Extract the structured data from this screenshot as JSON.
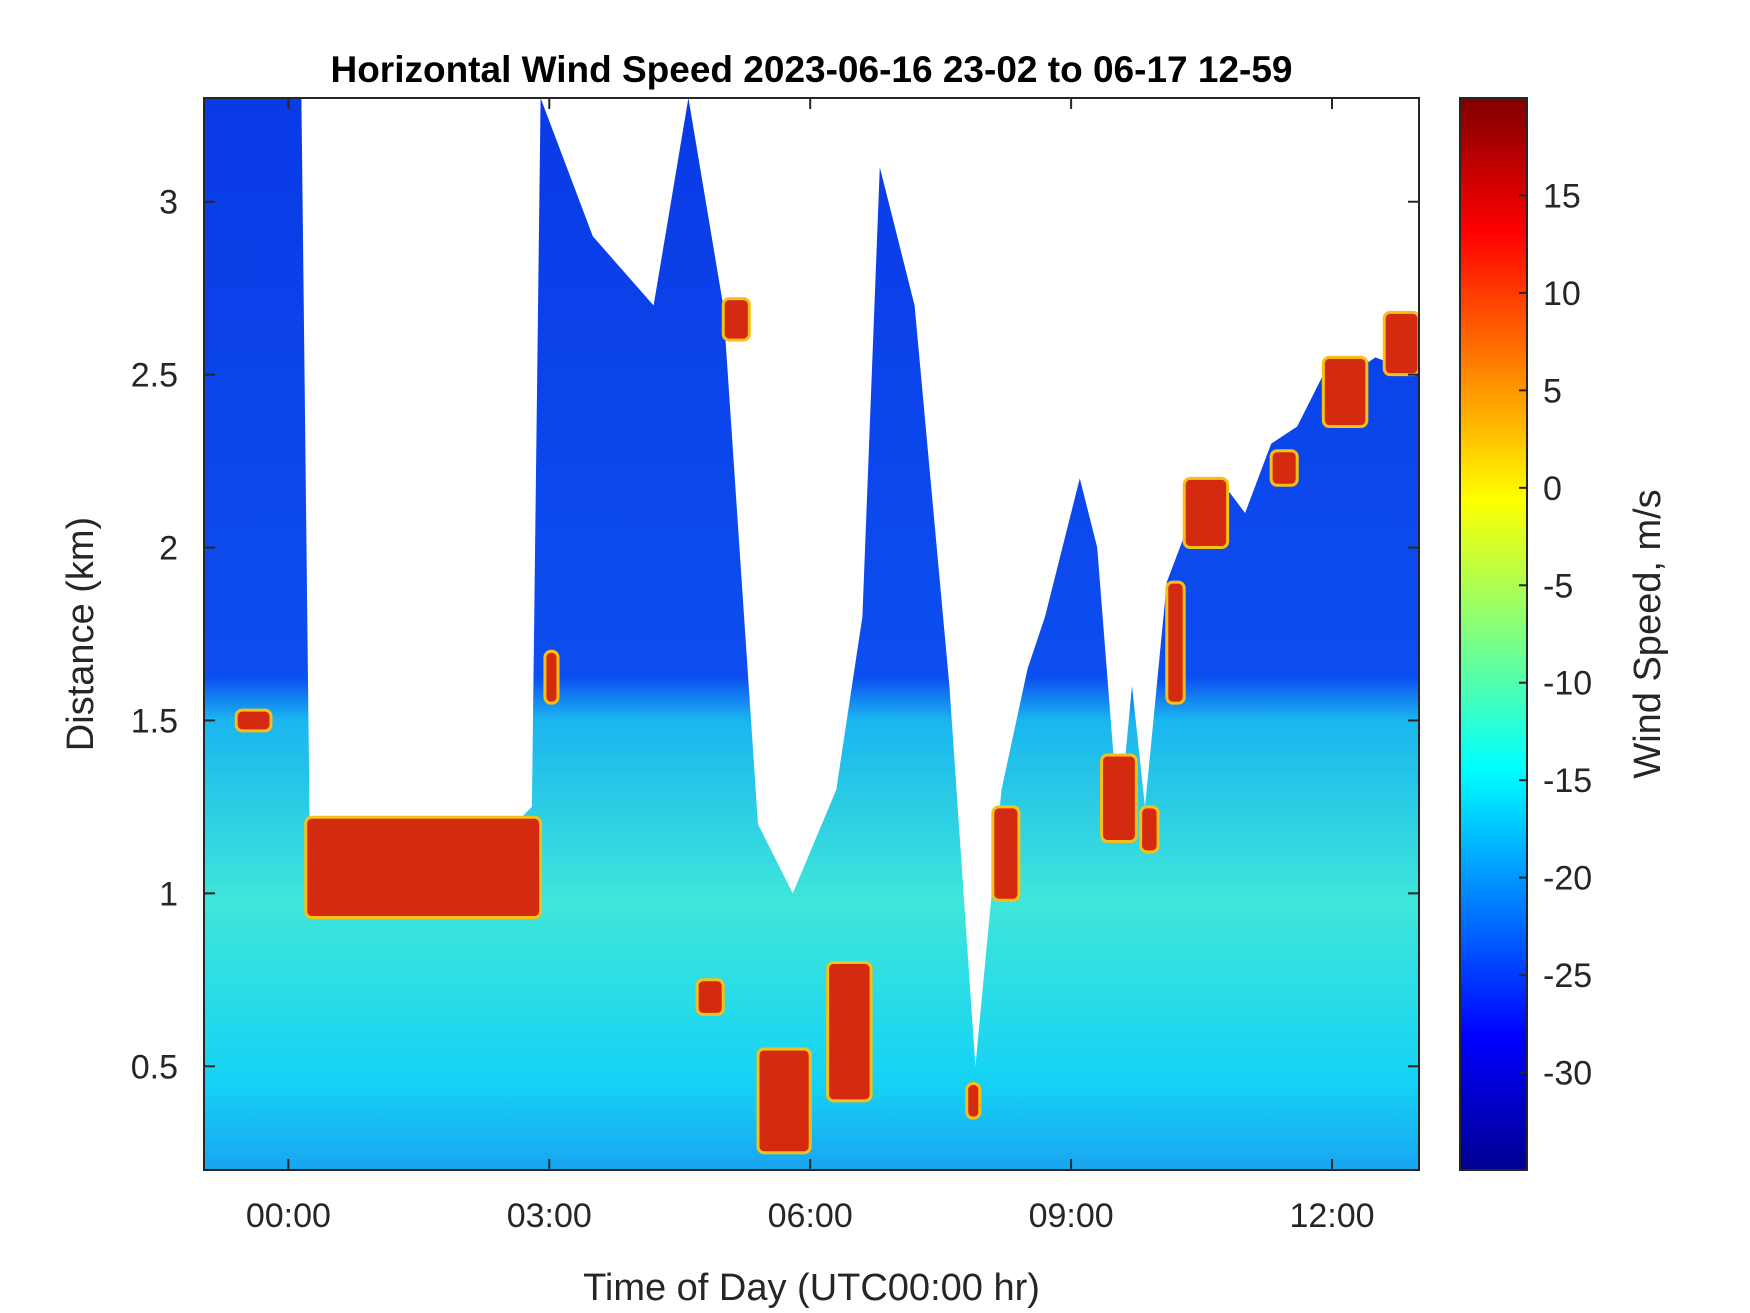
{
  "chart_data": {
    "type": "heatmap",
    "title": "Horizontal Wind Speed 2023-06-16 23-02 to 06-17 12-59",
    "xlabel": "Time of Day (UTC00:00 hr)",
    "ylabel": "Distance (km)",
    "colorbar_label": "Wind Speed, m/s",
    "colormap": "jet",
    "xlim_hours": [
      -0.97,
      13.0
    ],
    "ylim_km": [
      0.2,
      3.3
    ],
    "clim": [
      -35,
      20
    ],
    "x_ticks": [
      {
        "value": 0,
        "label": "00:00"
      },
      {
        "value": 3,
        "label": "03:00"
      },
      {
        "value": 6,
        "label": "06:00"
      },
      {
        "value": 9,
        "label": "09:00"
      },
      {
        "value": 12,
        "label": "12:00"
      }
    ],
    "y_ticks": [
      {
        "value": 0.5,
        "label": "0.5"
      },
      {
        "value": 1.0,
        "label": "1"
      },
      {
        "value": 1.5,
        "label": "1.5"
      },
      {
        "value": 2.0,
        "label": "2"
      },
      {
        "value": 2.5,
        "label": "2.5"
      },
      {
        "value": 3.0,
        "label": "3"
      }
    ],
    "colorbar_ticks": [
      {
        "value": 15,
        "label": "15"
      },
      {
        "value": 10,
        "label": "10"
      },
      {
        "value": 5,
        "label": "5"
      },
      {
        "value": 0,
        "label": "0"
      },
      {
        "value": -5,
        "label": "-5"
      },
      {
        "value": -10,
        "label": "-10"
      },
      {
        "value": -15,
        "label": "-15"
      },
      {
        "value": -20,
        "label": "-20"
      },
      {
        "value": -25,
        "label": "-25"
      },
      {
        "value": -30,
        "label": "-30"
      }
    ],
    "data_top_km": [
      [
        -0.97,
        3.3
      ],
      [
        0.0,
        3.3
      ],
      [
        0.15,
        3.3
      ],
      [
        0.25,
        1.08
      ],
      [
        0.7,
        1.02
      ],
      [
        1.5,
        1.05
      ],
      [
        2.2,
        1.1
      ],
      [
        2.8,
        1.25
      ],
      [
        2.9,
        3.3
      ],
      [
        3.5,
        2.9
      ],
      [
        4.2,
        2.7
      ],
      [
        4.6,
        3.3
      ],
      [
        5.0,
        2.7
      ],
      [
        5.4,
        1.2
      ],
      [
        5.8,
        1.0
      ],
      [
        6.3,
        1.3
      ],
      [
        6.6,
        1.8
      ],
      [
        6.8,
        3.1
      ],
      [
        7.2,
        2.7
      ],
      [
        7.6,
        1.6
      ],
      [
        7.9,
        0.5
      ],
      [
        8.2,
        1.3
      ],
      [
        8.5,
        1.65
      ],
      [
        8.7,
        1.8
      ],
      [
        9.1,
        2.2
      ],
      [
        9.3,
        2.0
      ],
      [
        9.55,
        1.2
      ],
      [
        9.7,
        1.6
      ],
      [
        9.85,
        1.25
      ],
      [
        10.1,
        1.9
      ],
      [
        10.4,
        2.1
      ],
      [
        10.7,
        2.2
      ],
      [
        11.0,
        2.1
      ],
      [
        11.3,
        2.3
      ],
      [
        11.6,
        2.35
      ],
      [
        11.9,
        2.5
      ],
      [
        12.2,
        2.5
      ],
      [
        12.5,
        2.55
      ],
      [
        13.0,
        2.5
      ]
    ],
    "jet_layers": [
      {
        "name": "",
        "x": [
          -0.6,
          -0.2
        ],
        "y": [
          1.47,
          1.53
        ]
      },
      {
        "name": "",
        "x": [
          0.2,
          2.9
        ],
        "y": [
          0.93,
          1.22
        ]
      },
      {
        "name": "",
        "x": [
          2.95,
          3.1
        ],
        "y": [
          1.55,
          1.7
        ]
      },
      {
        "name": "",
        "x": [
          4.7,
          5.0
        ],
        "y": [
          0.65,
          0.75
        ]
      },
      {
        "name": "",
        "x": [
          5.0,
          5.3
        ],
        "y": [
          2.6,
          2.72
        ]
      },
      {
        "name": "",
        "x": [
          5.4,
          6.0
        ],
        "y": [
          0.25,
          0.55
        ]
      },
      {
        "name": "",
        "x": [
          6.2,
          6.7
        ],
        "y": [
          0.4,
          0.8
        ]
      },
      {
        "name": "",
        "x": [
          7.8,
          7.95
        ],
        "y": [
          0.35,
          0.45
        ]
      },
      {
        "name": "",
        "x": [
          8.1,
          8.4
        ],
        "y": [
          0.98,
          1.25
        ]
      },
      {
        "name": "",
        "x": [
          9.35,
          9.75
        ],
        "y": [
          1.15,
          1.4
        ]
      },
      {
        "name": "",
        "x": [
          9.8,
          10.0
        ],
        "y": [
          1.12,
          1.25
        ]
      },
      {
        "name": "",
        "x": [
          10.1,
          10.3
        ],
        "y": [
          1.55,
          1.9
        ]
      },
      {
        "name": "",
        "x": [
          10.3,
          10.8
        ],
        "y": [
          2.0,
          2.2
        ]
      },
      {
        "name": "",
        "x": [
          11.3,
          11.6
        ],
        "y": [
          2.18,
          2.28
        ]
      },
      {
        "name": "",
        "x": [
          11.9,
          12.4
        ],
        "y": [
          2.35,
          2.55
        ]
      },
      {
        "name": "",
        "x": [
          12.6,
          13.0
        ],
        "y": [
          2.5,
          2.68
        ]
      }
    ]
  }
}
